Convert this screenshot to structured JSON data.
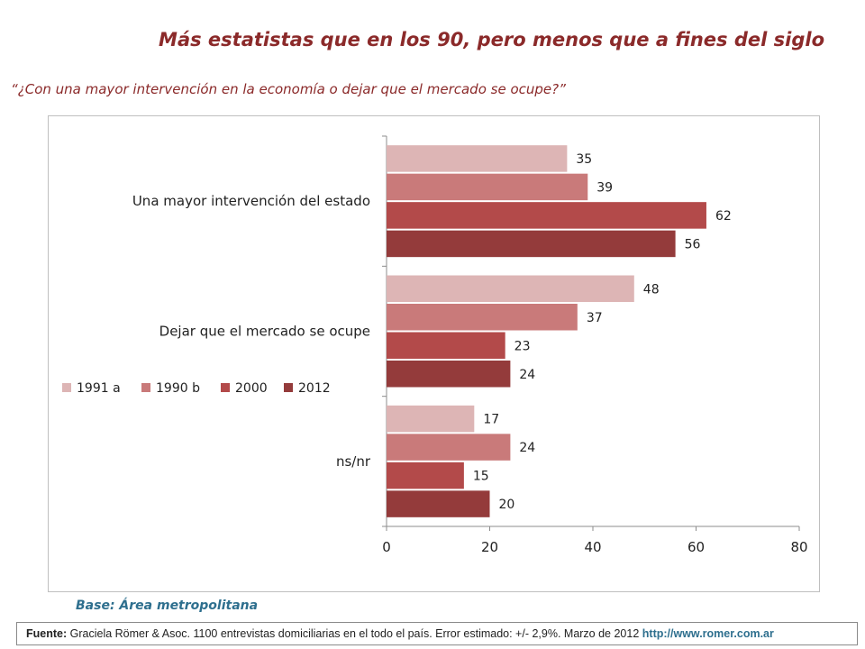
{
  "title": "Más estatistas que en los 90, pero menos que a fines del siglo",
  "subtitle": "“¿Con una mayor intervención en la economía o dejar que el mercado se ocupe?”",
  "base": "Base: Área metropolitana",
  "source": {
    "label": "Fuente:",
    "text": "Graciela Römer & Asoc. 1100 entrevistas domiciliarias en el todo el país. Error estimado: +/- 2,9%. Marzo de 2012",
    "url": "http://www.romer.com.ar"
  },
  "chart_data": {
    "type": "bar",
    "orientation": "horizontal",
    "categories": [
      "Una mayor intervención del estado",
      "Dejar que el mercado se ocupe",
      "ns/nr"
    ],
    "series": [
      {
        "name": "1991 a",
        "color": "#ddb5b5",
        "values": [
          35,
          48,
          17
        ]
      },
      {
        "name": "1990 b",
        "color": "#c97a7a",
        "values": [
          39,
          37,
          24
        ]
      },
      {
        "name": "2000",
        "color": "#b34a4a",
        "values": [
          62,
          23,
          15
        ]
      },
      {
        "name": "2012",
        "color": "#943b3b",
        "values": [
          56,
          24,
          20
        ]
      }
    ],
    "xlim": [
      0,
      80
    ],
    "xticks": [
      0,
      20,
      40,
      60,
      80
    ],
    "legend_position": "left",
    "grid": false
  }
}
